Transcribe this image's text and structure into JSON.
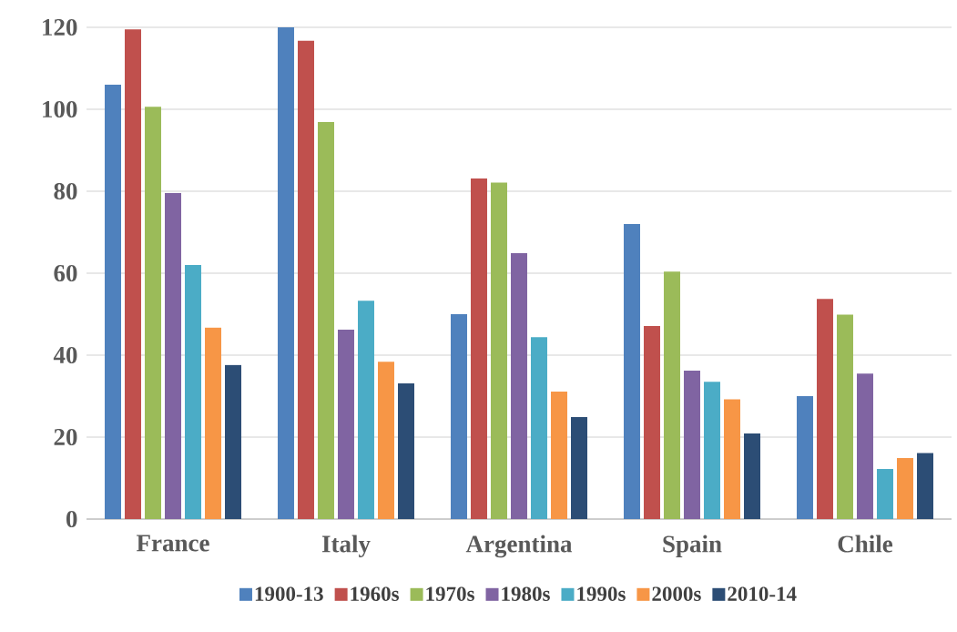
{
  "chart_data": {
    "type": "bar",
    "categories": [
      "France",
      "Italy",
      "Argentina",
      "Spain",
      "Chile"
    ],
    "series": [
      {
        "name": "1900-13",
        "color": "#4f81bd",
        "values": [
          106,
          120,
          50,
          72,
          30
        ]
      },
      {
        "name": "1960s",
        "color": "#c0504d",
        "values": [
          119.5,
          116.7,
          83.1,
          47.1,
          53.7
        ]
      },
      {
        "name": "1970s",
        "color": "#9bbb59",
        "values": [
          100.6,
          96.9,
          82.1,
          60.4,
          49.9
        ]
      },
      {
        "name": "1980s",
        "color": "#8064a2",
        "values": [
          79.6,
          46.2,
          64.9,
          36.2,
          35.5
        ]
      },
      {
        "name": "1990s",
        "color": "#4bacc6",
        "values": [
          62,
          53.3,
          44.4,
          33.5,
          12.2
        ]
      },
      {
        "name": "2000s",
        "color": "#f79646",
        "values": [
          46.7,
          38.4,
          31.1,
          29.2,
          14.9
        ]
      },
      {
        "name": "2010-14",
        "color": "#2c4d75",
        "values": [
          37.6,
          33.1,
          24.9,
          20.9,
          16.1
        ]
      }
    ],
    "ylim": [
      0,
      120
    ],
    "yticks": [
      0,
      20,
      40,
      60,
      80,
      100,
      120
    ],
    "grid": "y",
    "legend": "bottom"
  }
}
